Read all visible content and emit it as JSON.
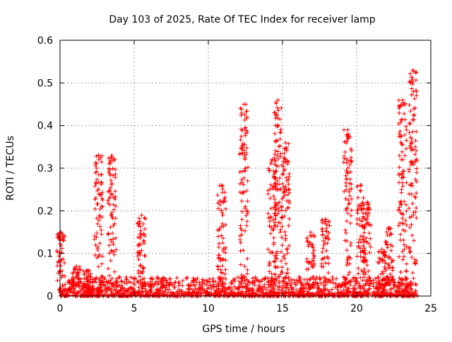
{
  "chart_data": {
    "type": "scatter",
    "title": "Day 103 of 2025, Rate Of TEC Index for receiver lamp",
    "xlabel": "GPS time / hours",
    "ylabel": "ROTI / TECUs",
    "xlim": [
      0,
      25
    ],
    "ylim": [
      0,
      0.6
    ],
    "xticks": [
      0,
      5,
      10,
      15,
      20,
      25
    ],
    "yticks": [
      0,
      0.1,
      0.2,
      0.3,
      0.4,
      0.5,
      0.6
    ],
    "grid": true,
    "marker": "+",
    "colors": {
      "points": "#ff0000",
      "grid": "#a0a0a0",
      "axes": "#000000"
    },
    "series": [
      {
        "baseline_x_range": [
          0,
          24.1
        ],
        "baseline_y_range": [
          0,
          0.045
        ],
        "peaks": [
          {
            "x": 0.05,
            "y": 0.15
          },
          {
            "x": 1.1,
            "y": 0.07
          },
          {
            "x": 1.8,
            "y": 0.06
          },
          {
            "x": 2.6,
            "y": 0.33
          },
          {
            "x": 3.5,
            "y": 0.33
          },
          {
            "x": 5.5,
            "y": 0.19
          },
          {
            "x": 10.9,
            "y": 0.26
          },
          {
            "x": 12.4,
            "y": 0.45
          },
          {
            "x": 14.3,
            "y": 0.32
          },
          {
            "x": 14.7,
            "y": 0.46
          },
          {
            "x": 15.2,
            "y": 0.36
          },
          {
            "x": 16.9,
            "y": 0.15
          },
          {
            "x": 17.9,
            "y": 0.18
          },
          {
            "x": 19.4,
            "y": 0.39
          },
          {
            "x": 20.3,
            "y": 0.26
          },
          {
            "x": 20.7,
            "y": 0.22
          },
          {
            "x": 21.7,
            "y": 0.11
          },
          {
            "x": 22.2,
            "y": 0.16
          },
          {
            "x": 23.1,
            "y": 0.46
          },
          {
            "x": 23.8,
            "y": 0.53
          }
        ]
      }
    ]
  }
}
